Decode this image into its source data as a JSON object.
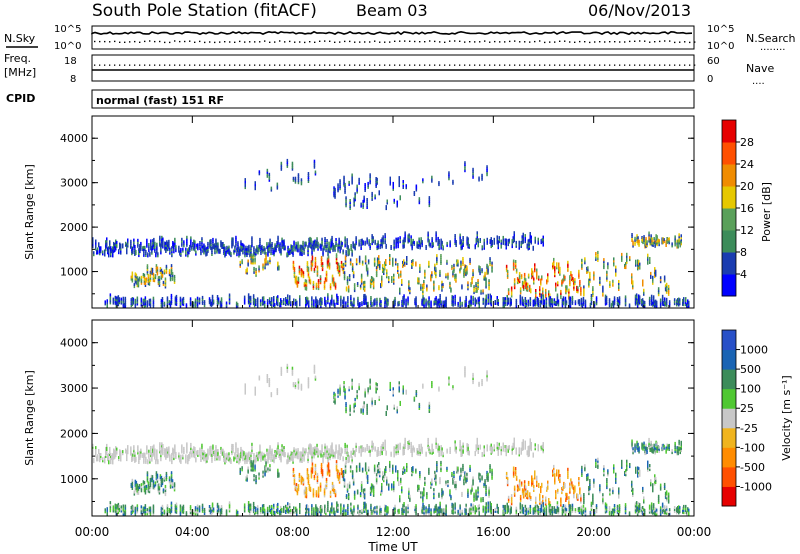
{
  "header": {
    "station": "South Pole Station (fitACF)",
    "beam": "Beam 03",
    "date": "06/Nov/2013"
  },
  "top_panels": {
    "nsky_label": "N.Sky",
    "nsearch_label": "N.Search",
    "nsearch_dots": "........",
    "nsky_ticks": [
      "10^5",
      "10^0"
    ],
    "nsearch_ticks": [
      "10^5",
      "10^0"
    ],
    "freq_label_1": "Freq.",
    "freq_label_2": "[MHz]",
    "freq_ticks": [
      "18",
      "8"
    ],
    "nave_label": "Nave",
    "nave_dots": "....",
    "nave_ticks": [
      "60",
      "0"
    ],
    "cpid_label": "CPID",
    "cpid_value": "normal (fast) 151 RF"
  },
  "colors": {
    "power": [
      "#0000ff",
      "#1a3cb0",
      "#3c8c5a",
      "#5aa05a",
      "#e6c800",
      "#f08c00",
      "#ff5000",
      "#e60000"
    ],
    "velocity": [
      "#e60000",
      "#ff5000",
      "#ff8c00",
      "#f0b41e",
      "#c8c8c8",
      "#50c832",
      "#3c8c5a",
      "#1a64b4",
      "#2850c8"
    ]
  },
  "chart_data": [
    {
      "type": "heatmap",
      "name": "power",
      "ylabel": "Slant Range [km]",
      "yticks": [
        "4000",
        "3000",
        "2000",
        "1000"
      ],
      "ylim": [
        180,
        4500
      ],
      "colorbar_label": "Power [dB]",
      "colorbar_ticks": [
        "28",
        "24",
        "20",
        "16",
        "12",
        "8",
        "4"
      ],
      "colorbar_range": [
        0,
        32
      ],
      "x": [
        "00:00",
        "04:00",
        "08:00",
        "12:00",
        "16:00",
        "20:00",
        "00:00"
      ],
      "xlim_hours": [
        0,
        24
      ]
    },
    {
      "type": "heatmap",
      "name": "velocity",
      "ylabel": "Slant Range [km]",
      "yticks": [
        "4000",
        "3000",
        "2000",
        "1000"
      ],
      "ylim": [
        180,
        4500
      ],
      "colorbar_label": "Velocity [m s⁻¹]",
      "colorbar_ticks": [
        "1000",
        "500",
        "100",
        "25",
        "-25",
        "-100",
        "-500",
        "-1000"
      ],
      "x": [
        "00:00",
        "04:00",
        "08:00",
        "12:00",
        "16:00",
        "20:00",
        "00:00"
      ],
      "xlim_hours": [
        0,
        24
      ],
      "xlabel": "Time UT"
    }
  ]
}
